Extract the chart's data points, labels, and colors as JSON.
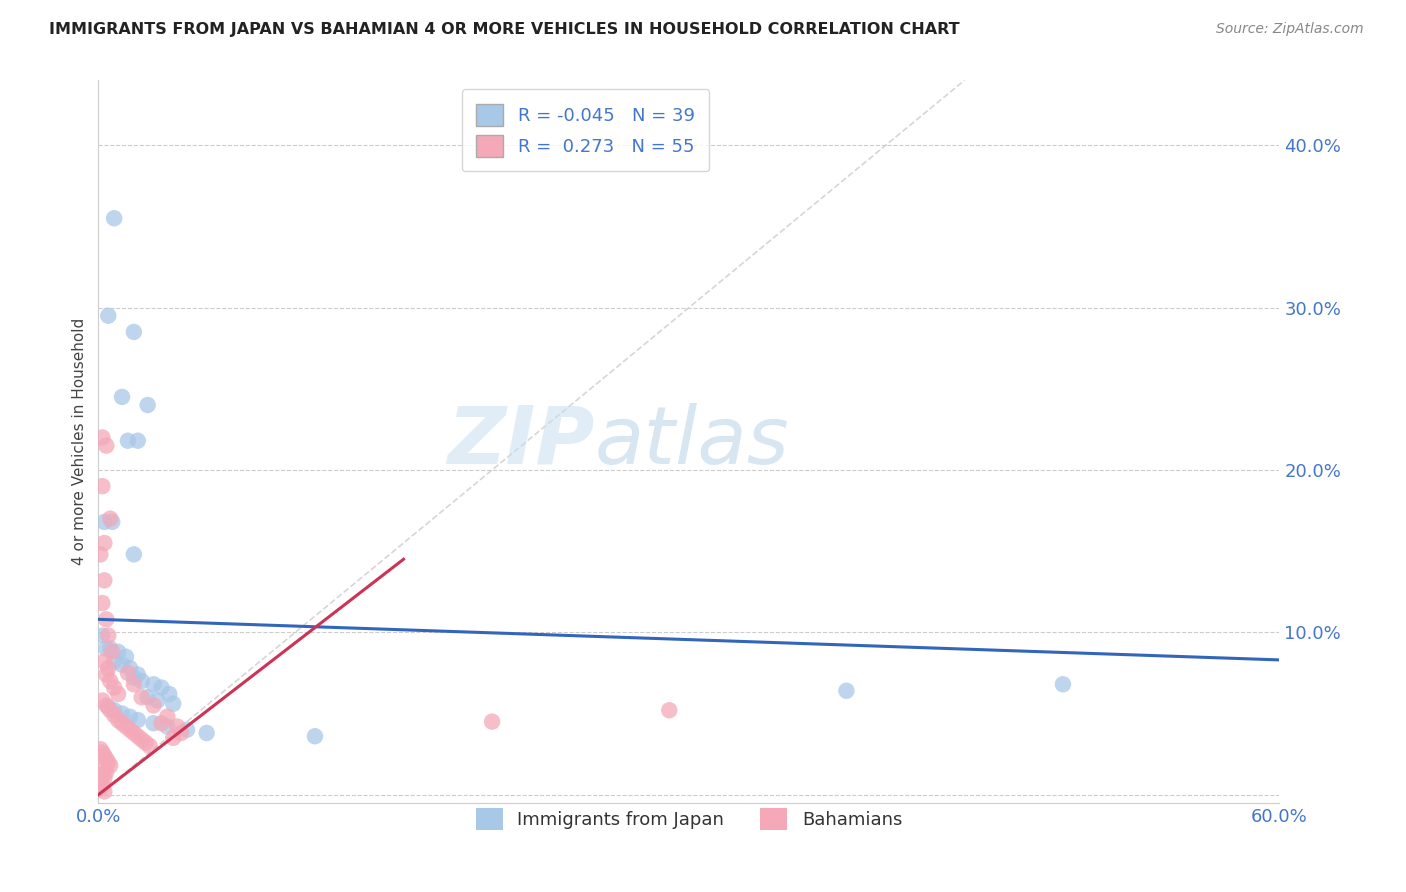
{
  "title": "IMMIGRANTS FROM JAPAN VS BAHAMIAN 4 OR MORE VEHICLES IN HOUSEHOLD CORRELATION CHART",
  "source": "Source: ZipAtlas.com",
  "ylabel": "4 or more Vehicles in Household",
  "watermark_zip": "ZIP",
  "watermark_atlas": "atlas",
  "legend_label1": "Immigrants from Japan",
  "legend_label2": "Bahamians",
  "R1": "-0.045",
  "N1": "39",
  "R2": "0.273",
  "N2": "55",
  "xlim": [
    0.0,
    0.6
  ],
  "ylim": [
    -0.005,
    0.44
  ],
  "xticks": [
    0.0,
    0.1,
    0.2,
    0.3,
    0.4,
    0.5,
    0.6
  ],
  "yticks": [
    0.0,
    0.1,
    0.2,
    0.3,
    0.4
  ],
  "color_blue": "#a8c8e8",
  "color_pink": "#f4a8b8",
  "color_blue_line": "#3366bb",
  "color_pink_line": "#cc3355",
  "color_diag": "#cccccc",
  "grid_color": "#cccccc",
  "blue_trend_x0": 0.0,
  "blue_trend_y0": 0.108,
  "blue_trend_x1": 0.6,
  "blue_trend_y1": 0.083,
  "pink_trend_x0": 0.0,
  "pink_trend_y0": 0.0,
  "pink_trend_x1": 0.155,
  "pink_trend_y1": 0.145,
  "blue_dots": [
    [
      0.008,
      0.355
    ],
    [
      0.005,
      0.295
    ],
    [
      0.018,
      0.285
    ],
    [
      0.012,
      0.245
    ],
    [
      0.025,
      0.24
    ],
    [
      0.02,
      0.218
    ],
    [
      0.015,
      0.218
    ],
    [
      0.003,
      0.168
    ],
    [
      0.007,
      0.168
    ],
    [
      0.018,
      0.148
    ],
    [
      0.002,
      0.098
    ],
    [
      0.004,
      0.09
    ],
    [
      0.006,
      0.09
    ],
    [
      0.01,
      0.088
    ],
    [
      0.014,
      0.085
    ],
    [
      0.008,
      0.082
    ],
    [
      0.012,
      0.08
    ],
    [
      0.016,
      0.078
    ],
    [
      0.02,
      0.074
    ],
    [
      0.018,
      0.072
    ],
    [
      0.022,
      0.07
    ],
    [
      0.028,
      0.068
    ],
    [
      0.032,
      0.066
    ],
    [
      0.036,
      0.062
    ],
    [
      0.025,
      0.06
    ],
    [
      0.03,
      0.058
    ],
    [
      0.038,
      0.056
    ],
    [
      0.005,
      0.054
    ],
    [
      0.008,
      0.052
    ],
    [
      0.012,
      0.05
    ],
    [
      0.016,
      0.048
    ],
    [
      0.02,
      0.046
    ],
    [
      0.028,
      0.044
    ],
    [
      0.035,
      0.042
    ],
    [
      0.045,
      0.04
    ],
    [
      0.055,
      0.038
    ],
    [
      0.11,
      0.036
    ],
    [
      0.38,
      0.064
    ],
    [
      0.49,
      0.068
    ]
  ],
  "pink_dots": [
    [
      0.002,
      0.22
    ],
    [
      0.004,
      0.215
    ],
    [
      0.002,
      0.19
    ],
    [
      0.006,
      0.17
    ],
    [
      0.003,
      0.155
    ],
    [
      0.001,
      0.148
    ],
    [
      0.003,
      0.132
    ],
    [
      0.002,
      0.118
    ],
    [
      0.004,
      0.108
    ],
    [
      0.005,
      0.098
    ],
    [
      0.007,
      0.088
    ],
    [
      0.003,
      0.082
    ],
    [
      0.005,
      0.078
    ],
    [
      0.004,
      0.074
    ],
    [
      0.006,
      0.07
    ],
    [
      0.008,
      0.066
    ],
    [
      0.01,
      0.062
    ],
    [
      0.002,
      0.058
    ],
    [
      0.004,
      0.055
    ],
    [
      0.006,
      0.052
    ],
    [
      0.008,
      0.049
    ],
    [
      0.01,
      0.046
    ],
    [
      0.012,
      0.044
    ],
    [
      0.014,
      0.042
    ],
    [
      0.016,
      0.04
    ],
    [
      0.018,
      0.038
    ],
    [
      0.02,
      0.036
    ],
    [
      0.022,
      0.034
    ],
    [
      0.024,
      0.032
    ],
    [
      0.026,
      0.03
    ],
    [
      0.001,
      0.028
    ],
    [
      0.002,
      0.026
    ],
    [
      0.003,
      0.024
    ],
    [
      0.004,
      0.022
    ],
    [
      0.005,
      0.02
    ],
    [
      0.006,
      0.018
    ],
    [
      0.003,
      0.016
    ],
    [
      0.004,
      0.014
    ],
    [
      0.002,
      0.012
    ],
    [
      0.003,
      0.01
    ],
    [
      0.001,
      0.008
    ],
    [
      0.002,
      0.006
    ],
    [
      0.001,
      0.004
    ],
    [
      0.003,
      0.002
    ],
    [
      0.035,
      0.048
    ],
    [
      0.04,
      0.042
    ],
    [
      0.042,
      0.038
    ],
    [
      0.028,
      0.055
    ],
    [
      0.032,
      0.044
    ],
    [
      0.018,
      0.068
    ],
    [
      0.022,
      0.06
    ],
    [
      0.015,
      0.075
    ],
    [
      0.038,
      0.035
    ],
    [
      0.29,
      0.052
    ],
    [
      0.2,
      0.045
    ]
  ]
}
